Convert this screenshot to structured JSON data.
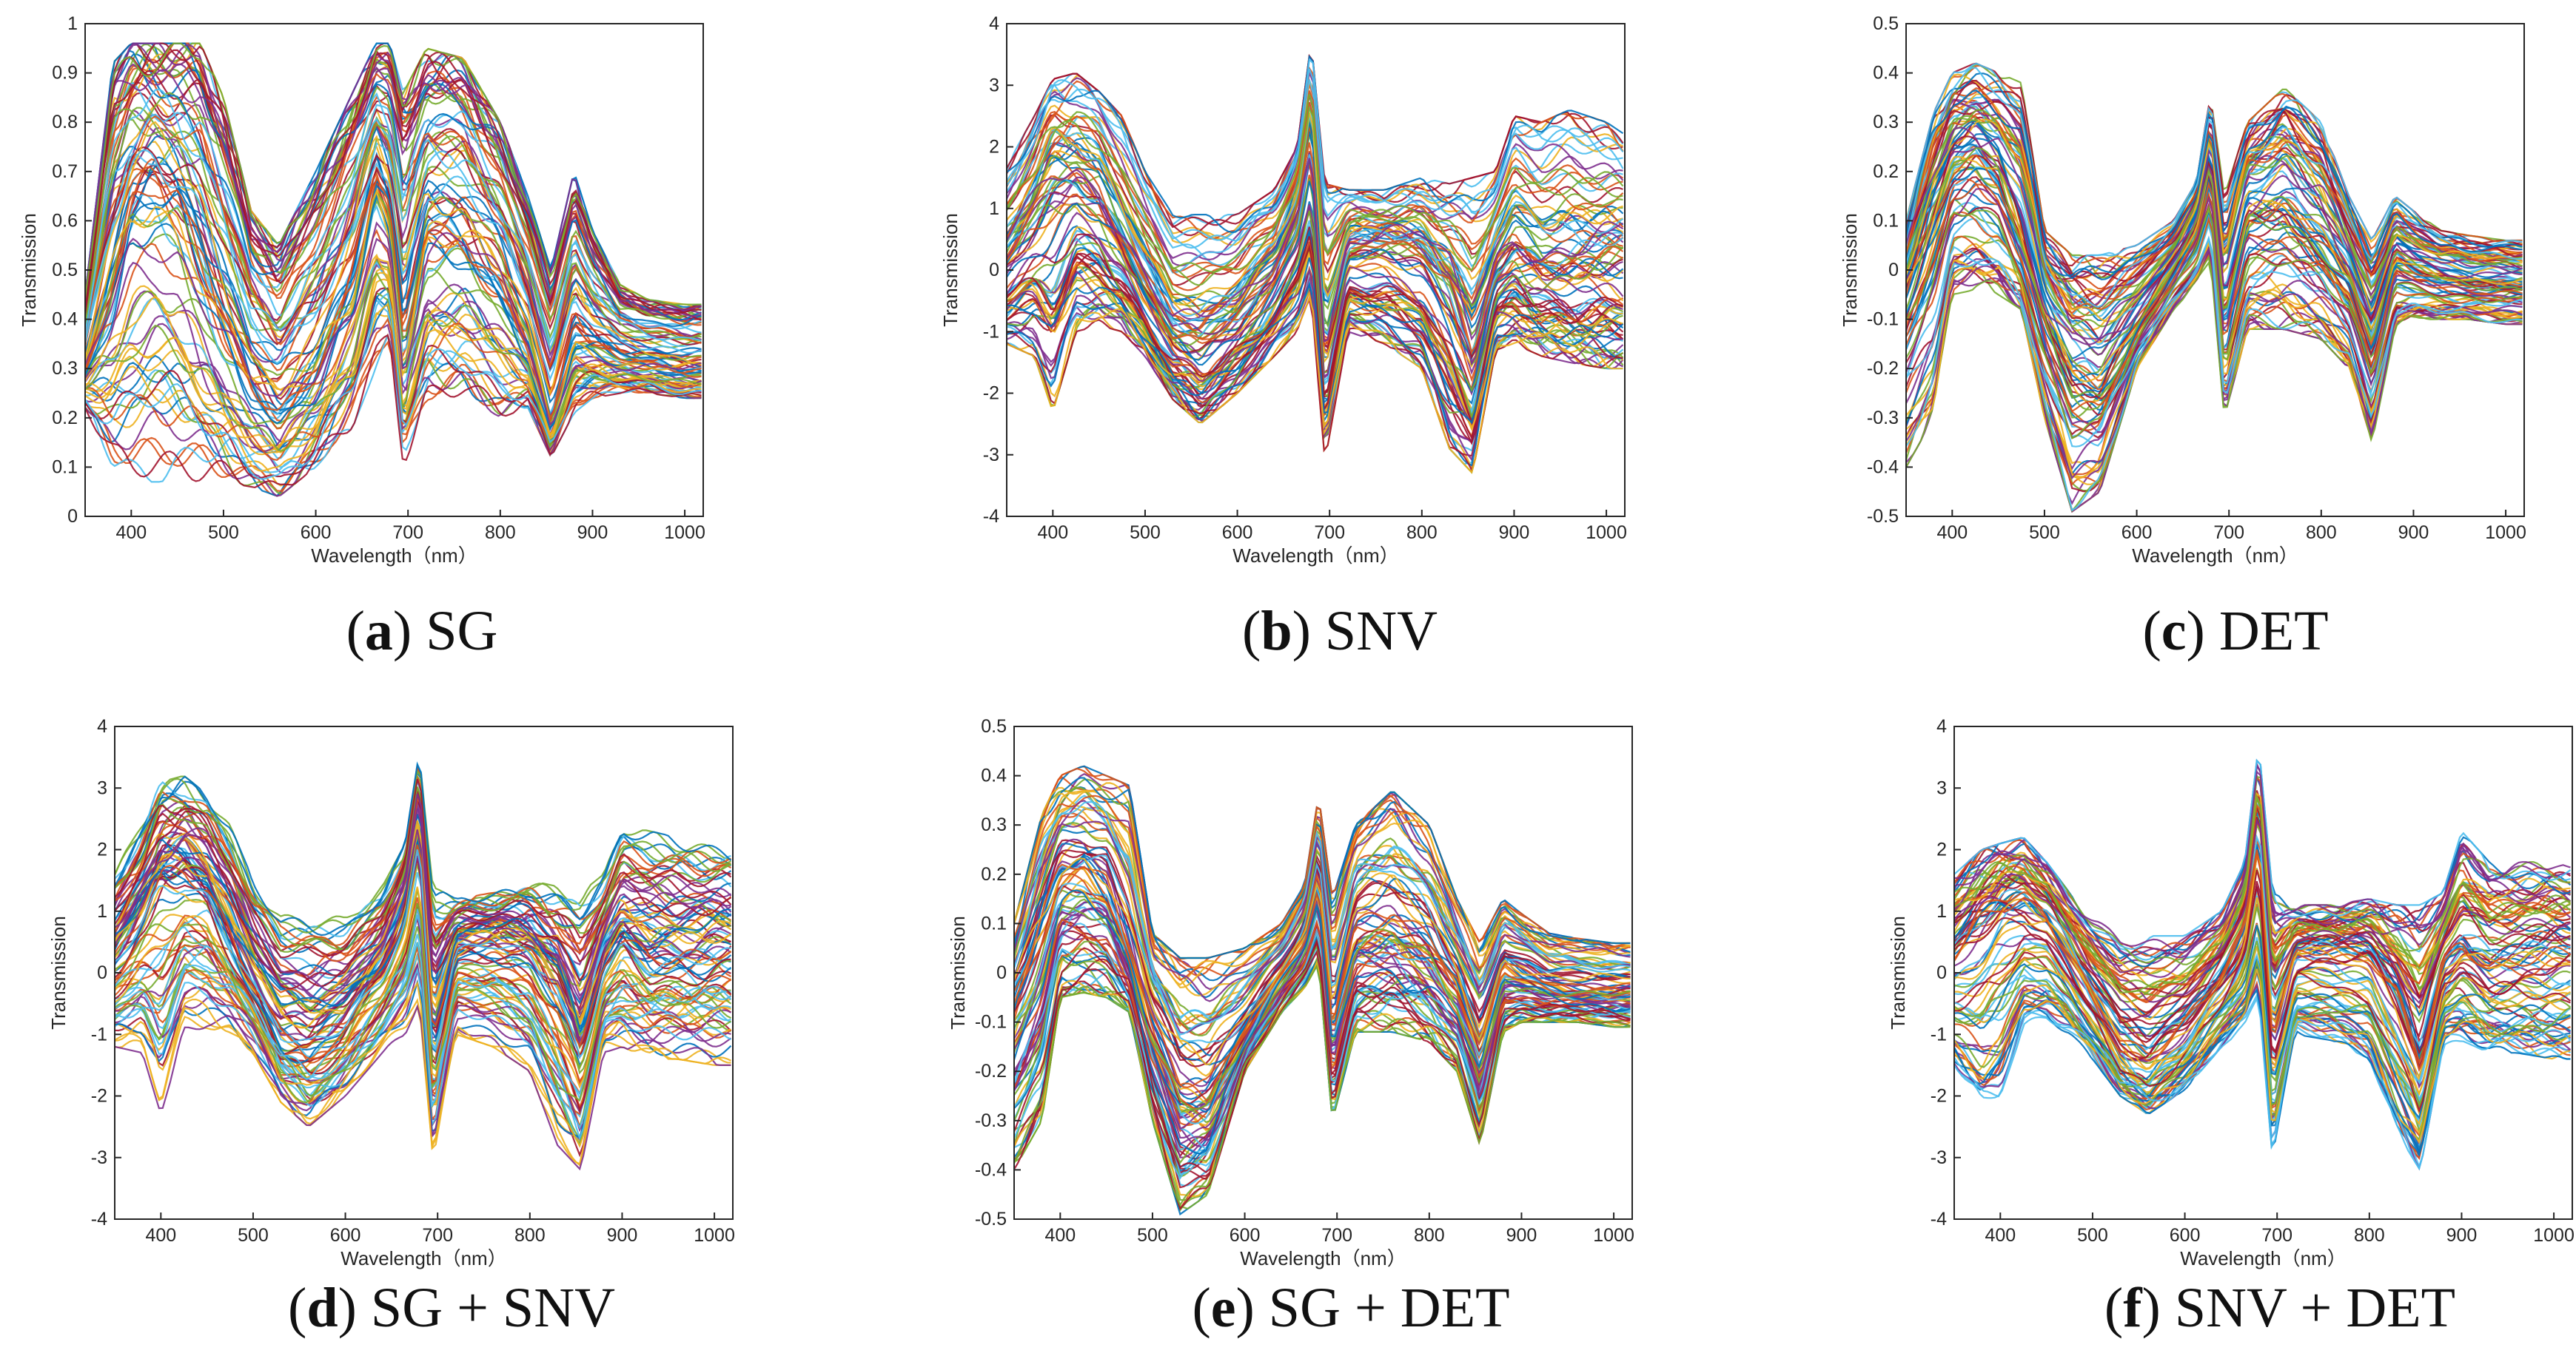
{
  "chart_data": [
    {
      "type": "line",
      "panel_label": "a",
      "caption": "SG",
      "xlabel": "Wavelength（nm）",
      "ylabel": "Transmission",
      "xlim": [
        350,
        1020
      ],
      "ylim": [
        0,
        1
      ],
      "xticks": [
        400,
        500,
        600,
        700,
        800,
        900,
        1000
      ],
      "yticks": [
        0,
        0.1,
        0.2,
        0.3,
        0.4,
        0.5,
        0.6,
        0.7,
        0.8,
        0.9,
        1
      ],
      "ytick_labels": [
        "0",
        "0.1",
        "0.2",
        "0.3",
        "0.4",
        "0.5",
        "0.6",
        "0.7",
        "0.8",
        "0.9",
        "1"
      ],
      "wavelengths_nm": [
        350,
        380,
        400,
        425,
        450,
        475,
        500,
        530,
        560,
        600,
        640,
        665,
        680,
        695,
        720,
        760,
        800,
        830,
        855,
        880,
        900,
        930,
        960,
        1000,
        1020
      ],
      "envelope_upper": [
        0.45,
        0.92,
        0.96,
        0.96,
        0.96,
        0.96,
        0.85,
        0.62,
        0.55,
        0.7,
        0.86,
        0.96,
        0.96,
        0.86,
        0.95,
        0.93,
        0.8,
        0.65,
        0.5,
        0.7,
        0.58,
        0.47,
        0.44,
        0.43,
        0.43
      ],
      "median_curve": [
        0.3,
        0.48,
        0.62,
        0.66,
        0.62,
        0.52,
        0.4,
        0.28,
        0.22,
        0.3,
        0.46,
        0.68,
        0.6,
        0.34,
        0.58,
        0.57,
        0.48,
        0.36,
        0.18,
        0.36,
        0.34,
        0.32,
        0.31,
        0.3,
        0.3
      ],
      "envelope_lower": [
        0.22,
        0.1,
        0.07,
        0.07,
        0.07,
        0.07,
        0.07,
        0.06,
        0.04,
        0.1,
        0.18,
        0.3,
        0.35,
        0.1,
        0.22,
        0.25,
        0.2,
        0.22,
        0.12,
        0.21,
        0.24,
        0.25,
        0.25,
        0.24,
        0.24
      ]
    },
    {
      "type": "line",
      "panel_label": "b",
      "caption": "SNV",
      "xlabel": "Wavelength（nm）",
      "ylabel": "Transmission",
      "xlim": [
        350,
        1020
      ],
      "ylim": [
        -4,
        4
      ],
      "xticks": [
        400,
        500,
        600,
        700,
        800,
        900,
        1000
      ],
      "yticks": [
        -4,
        -3,
        -2,
        -1,
        0,
        1,
        2,
        3,
        4
      ],
      "ytick_labels": [
        "-4",
        "-3",
        "-2",
        "-1",
        "0",
        "1",
        "2",
        "3",
        "4"
      ],
      "wavelengths_nm": [
        350,
        380,
        400,
        425,
        450,
        475,
        500,
        530,
        560,
        600,
        640,
        665,
        680,
        695,
        720,
        760,
        800,
        830,
        855,
        880,
        900,
        930,
        960,
        1000,
        1020
      ],
      "envelope_upper": [
        1.7,
        2.5,
        3.1,
        3.2,
        2.9,
        2.5,
        1.6,
        0.9,
        0.9,
        0.9,
        1.3,
        2.0,
        3.7,
        1.4,
        1.3,
        1.3,
        1.5,
        1.4,
        1.5,
        1.6,
        2.5,
        2.4,
        2.6,
        2.4,
        2.2
      ],
      "median_curve": [
        0.2,
        0.9,
        1.5,
        1.6,
        1.3,
        0.6,
        -0.2,
        -1.0,
        -1.2,
        -0.8,
        0.0,
        0.9,
        2.2,
        -1.2,
        0.4,
        0.5,
        0.3,
        -0.3,
        -1.4,
        0.1,
        0.5,
        0.2,
        0.2,
        0.3,
        0.3
      ],
      "envelope_lower": [
        -1.2,
        -1.4,
        -2.3,
        -1.0,
        -0.9,
        -1.0,
        -1.4,
        -2.1,
        -2.5,
        -2.0,
        -1.4,
        -1.0,
        -0.5,
        -3.1,
        -1.0,
        -1.2,
        -1.6,
        -2.9,
        -3.3,
        -1.3,
        -1.2,
        -1.4,
        -1.5,
        -1.6,
        -1.6
      ]
    },
    {
      "type": "line",
      "panel_label": "c",
      "caption": "DET",
      "xlabel": "Wavelength（nm）",
      "ylabel": "Transmission",
      "xlim": [
        350,
        1020
      ],
      "ylim": [
        -0.5,
        0.5
      ],
      "xticks": [
        400,
        500,
        600,
        700,
        800,
        900,
        1000
      ],
      "yticks": [
        -0.5,
        -0.4,
        -0.3,
        -0.2,
        -0.1,
        0,
        0.1,
        0.2,
        0.3,
        0.4,
        0.5
      ],
      "ytick_labels": [
        "-0.5",
        "-0.4",
        "-0.3",
        "-0.2",
        "-0.1",
        "0",
        "0.1",
        "0.2",
        "0.3",
        "0.4",
        "0.5"
      ],
      "wavelengths_nm": [
        350,
        380,
        400,
        425,
        450,
        475,
        500,
        530,
        560,
        600,
        640,
        665,
        680,
        695,
        720,
        760,
        800,
        830,
        855,
        880,
        900,
        930,
        960,
        1000,
        1020
      ],
      "envelope_upper": [
        0.1,
        0.32,
        0.4,
        0.42,
        0.4,
        0.38,
        0.08,
        0.03,
        0.03,
        0.05,
        0.1,
        0.18,
        0.36,
        0.15,
        0.3,
        0.37,
        0.3,
        0.15,
        0.06,
        0.15,
        0.12,
        0.08,
        0.07,
        0.06,
        0.06
      ],
      "median_curve": [
        -0.05,
        0.1,
        0.2,
        0.22,
        0.18,
        0.05,
        -0.1,
        -0.22,
        -0.24,
        -0.12,
        0.0,
        0.08,
        0.2,
        -0.1,
        0.1,
        0.12,
        0.06,
        -0.02,
        -0.15,
        0.02,
        0.0,
        -0.02,
        -0.03,
        -0.03,
        -0.03
      ],
      "envelope_lower": [
        -0.4,
        -0.3,
        -0.05,
        -0.04,
        -0.05,
        -0.08,
        -0.3,
        -0.49,
        -0.45,
        -0.2,
        -0.08,
        -0.03,
        0.02,
        -0.3,
        -0.12,
        -0.12,
        -0.14,
        -0.2,
        -0.35,
        -0.12,
        -0.1,
        -0.1,
        -0.1,
        -0.11,
        -0.11
      ]
    },
    {
      "type": "line",
      "panel_label": "d",
      "caption": "SG + SNV",
      "xlabel": "Wavelength（nm）",
      "ylabel": "Transmission",
      "xlim": [
        350,
        1020
      ],
      "ylim": [
        -4,
        4
      ],
      "xticks": [
        400,
        500,
        600,
        700,
        800,
        900,
        1000
      ],
      "yticks": [
        -4,
        -3,
        -2,
        -1,
        0,
        1,
        2,
        3,
        4
      ],
      "ytick_labels": [
        "-4",
        "-3",
        "-2",
        "-1",
        "0",
        "1",
        "2",
        "3",
        "4"
      ],
      "wavelengths_nm": [
        350,
        380,
        400,
        425,
        450,
        475,
        500,
        530,
        560,
        600,
        640,
        665,
        680,
        695,
        720,
        760,
        800,
        830,
        855,
        880,
        900,
        930,
        960,
        1000,
        1020
      ],
      "envelope_upper": [
        1.7,
        2.4,
        3.1,
        3.2,
        2.9,
        2.4,
        1.5,
        1.0,
        1.0,
        0.9,
        1.4,
        2.1,
        3.7,
        1.4,
        1.2,
        1.3,
        1.5,
        1.4,
        1.3,
        1.6,
        2.4,
        2.3,
        2.2,
        2.1,
        2.1
      ],
      "median_curve": [
        0.2,
        0.9,
        1.5,
        1.6,
        1.3,
        0.6,
        -0.2,
        -1.0,
        -1.2,
        -0.8,
        0.0,
        0.9,
        2.2,
        -1.2,
        0.4,
        0.5,
        0.3,
        -0.3,
        -1.4,
        0.1,
        0.5,
        0.2,
        0.2,
        0.3,
        0.3
      ],
      "envelope_lower": [
        -1.2,
        -1.3,
        -2.3,
        -1.0,
        -0.9,
        -1.0,
        -1.3,
        -2.1,
        -2.5,
        -2.0,
        -1.3,
        -1.0,
        -0.5,
        -3.1,
        -1.0,
        -1.2,
        -1.6,
        -2.8,
        -3.2,
        -1.3,
        -1.2,
        -1.4,
        -1.4,
        -1.5,
        -1.5
      ]
    },
    {
      "type": "line",
      "panel_label": "e",
      "caption": "SG + DET",
      "xlabel": "Wavelength（nm）",
      "ylabel": "Transmission",
      "xlim": [
        350,
        1020
      ],
      "ylim": [
        -0.5,
        0.5
      ],
      "xticks": [
        400,
        500,
        600,
        700,
        800,
        900,
        1000
      ],
      "yticks": [
        -0.5,
        -0.4,
        -0.3,
        -0.2,
        -0.1,
        0,
        0.1,
        0.2,
        0.3,
        0.4,
        0.5
      ],
      "ytick_labels": [
        "-0.5",
        "-0.4",
        "-0.3",
        "-0.2",
        "-0.1",
        "0",
        "0.1",
        "0.2",
        "0.3",
        "0.4",
        "0.5"
      ],
      "wavelengths_nm": [
        350,
        380,
        400,
        425,
        450,
        475,
        500,
        530,
        560,
        600,
        640,
        665,
        680,
        695,
        720,
        760,
        800,
        830,
        855,
        880,
        900,
        930,
        960,
        1000,
        1020
      ],
      "envelope_upper": [
        0.1,
        0.32,
        0.4,
        0.42,
        0.4,
        0.38,
        0.08,
        0.03,
        0.03,
        0.05,
        0.1,
        0.18,
        0.36,
        0.15,
        0.3,
        0.37,
        0.3,
        0.15,
        0.06,
        0.15,
        0.12,
        0.08,
        0.07,
        0.06,
        0.06
      ],
      "median_curve": [
        -0.05,
        0.1,
        0.2,
        0.22,
        0.18,
        0.05,
        -0.1,
        -0.22,
        -0.24,
        -0.12,
        0.0,
        0.08,
        0.2,
        -0.1,
        0.1,
        0.12,
        0.06,
        -0.02,
        -0.15,
        0.02,
        0.0,
        -0.02,
        -0.03,
        -0.03,
        -0.03
      ],
      "envelope_lower": [
        -0.4,
        -0.3,
        -0.05,
        -0.04,
        -0.05,
        -0.08,
        -0.3,
        -0.49,
        -0.45,
        -0.2,
        -0.08,
        -0.03,
        0.02,
        -0.3,
        -0.12,
        -0.12,
        -0.14,
        -0.2,
        -0.35,
        -0.12,
        -0.1,
        -0.1,
        -0.1,
        -0.11,
        -0.11
      ]
    },
    {
      "type": "line",
      "panel_label": "f",
      "caption": "SNV + DET",
      "xlabel": "Wavelength（nm）",
      "ylabel": "Transmission",
      "xlim": [
        350,
        1020
      ],
      "ylim": [
        -4,
        4
      ],
      "xticks": [
        400,
        500,
        600,
        700,
        800,
        900,
        1000
      ],
      "yticks": [
        -4,
        -3,
        -2,
        -1,
        0,
        1,
        2,
        3,
        4
      ],
      "ytick_labels": [
        "-4",
        "-3",
        "-2",
        "-1",
        "0",
        "1",
        "2",
        "3",
        "4"
      ],
      "wavelengths_nm": [
        350,
        380,
        400,
        425,
        450,
        475,
        500,
        530,
        560,
        600,
        640,
        665,
        680,
        695,
        720,
        760,
        800,
        830,
        855,
        880,
        900,
        930,
        960,
        1000,
        1020
      ],
      "envelope_upper": [
        1.6,
        2.0,
        2.1,
        2.2,
        1.8,
        1.3,
        0.9,
        0.6,
        0.6,
        0.6,
        1.0,
        1.8,
        3.7,
        1.3,
        1.1,
        1.1,
        1.2,
        1.1,
        1.1,
        1.3,
        2.3,
        1.8,
        1.8,
        1.8,
        1.7
      ],
      "median_curve": [
        0.2,
        0.8,
        1.1,
        1.2,
        0.9,
        0.3,
        -0.4,
        -1.2,
        -1.5,
        -0.9,
        -0.1,
        0.7,
        2.2,
        -1.0,
        0.3,
        0.3,
        0.2,
        -0.5,
        -1.6,
        0.1,
        0.4,
        0.1,
        0.1,
        0.2,
        0.2
      ],
      "envelope_lower": [
        -1.5,
        -2.2,
        -2.0,
        -0.9,
        -0.8,
        -1.0,
        -1.4,
        -2.0,
        -2.3,
        -1.9,
        -1.2,
        -0.9,
        -0.4,
        -3.0,
        -1.0,
        -1.1,
        -1.4,
        -2.6,
        -3.2,
        -1.2,
        -1.1,
        -1.3,
        -1.3,
        -1.4,
        -1.4
      ]
    }
  ],
  "colors": [
    "#0072BD",
    "#D95319",
    "#EDB120",
    "#7E2F8E",
    "#77AC30",
    "#4DBEEE",
    "#A2142F"
  ]
}
